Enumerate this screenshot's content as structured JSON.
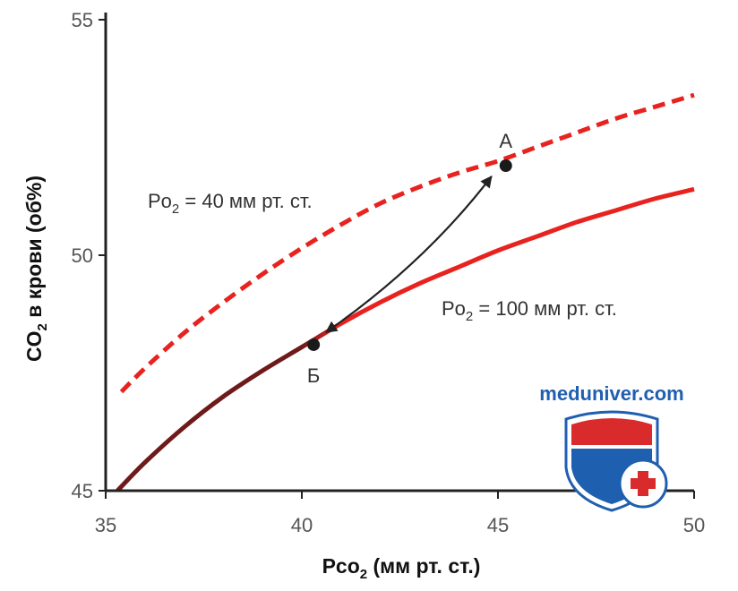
{
  "colors": {
    "curve": "#e8231f",
    "curve_dark": "#6e1a1a",
    "axis": "#222222",
    "arrow": "#222222",
    "shield_red": "#d92b2b",
    "shield_blue": "#1f5fb0"
  },
  "watermark": "meduniver.com",
  "chart_data": {
    "type": "line",
    "xlabel_parts": [
      "Pco",
      "2",
      " (мм рт. ст.)"
    ],
    "ylabel_parts": [
      "CO",
      "2",
      " в крови (об%)"
    ],
    "xlim": [
      35,
      50
    ],
    "ylim": [
      45,
      55
    ],
    "xticks": [
      35,
      40,
      45,
      50
    ],
    "yticks": [
      45,
      50,
      55
    ],
    "grid": false,
    "series": [
      {
        "name_parts": [
          "Po",
          "2",
          " = 40 мм рт. ст."
        ],
        "style": "dashed",
        "x": [
          35.4,
          36,
          37,
          38,
          39,
          40,
          41,
          42,
          43,
          44,
          45,
          46,
          47,
          48,
          49,
          50
        ],
        "y": [
          47.1,
          47.6,
          48.35,
          49.0,
          49.6,
          50.15,
          50.65,
          51.1,
          51.45,
          51.75,
          52.0,
          52.3,
          52.6,
          52.9,
          53.15,
          53.4
        ]
      },
      {
        "name_parts": [
          "Po",
          "2",
          " = 100 мм рт. ст."
        ],
        "style": "solid",
        "x": [
          35.3,
          36,
          37,
          38,
          39,
          40,
          41,
          42,
          43,
          44,
          45,
          46,
          47,
          48,
          49,
          50
        ],
        "y": [
          45.0,
          45.6,
          46.35,
          47.0,
          47.55,
          48.05,
          48.55,
          49.0,
          49.4,
          49.75,
          50.1,
          50.4,
          50.7,
          50.95,
          51.2,
          51.4
        ]
      }
    ],
    "points": [
      {
        "label": "А",
        "x": 45.2,
        "y": 51.9
      },
      {
        "label": "Б",
        "x": 40.3,
        "y": 48.1
      }
    ]
  }
}
